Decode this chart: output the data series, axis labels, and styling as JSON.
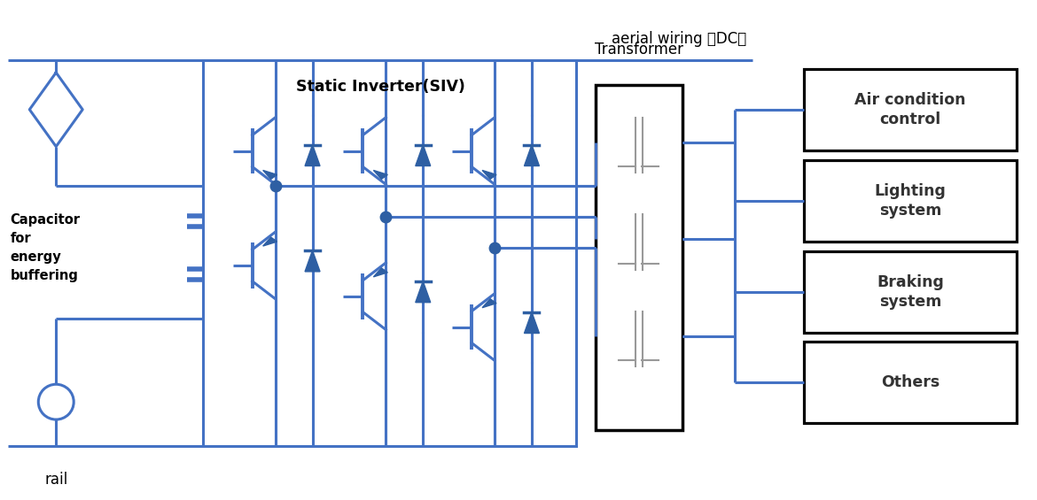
{
  "bg_color": "#ffffff",
  "blue": "#4472C4",
  "dark_blue": "#2E5FA3",
  "aerial_text": "aerial wiring （DC）",
  "rail_text": "rail",
  "siv_text": "Static Inverter(SIV)",
  "transformer_text": "Transformer",
  "cap_text": "Capacitor\nfor\nenergy\nbuffering",
  "output_boxes": [
    "Air condition\ncontrol",
    "Lighting\nsystem",
    "Braking\nsystem",
    "Others"
  ],
  "coil_color": "#999999"
}
